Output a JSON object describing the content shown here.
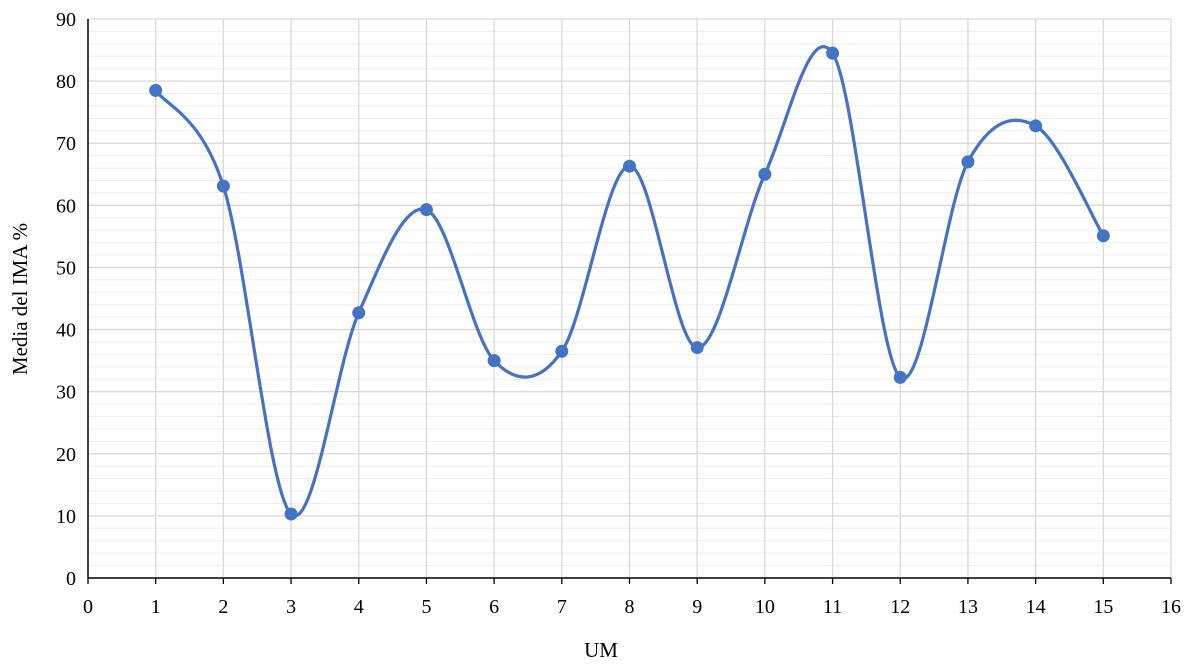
{
  "chart_data": {
    "type": "line",
    "smooth": true,
    "xlabel": "UM",
    "ylabel": "Media del IMA %",
    "xlim": [
      0,
      16
    ],
    "ylim": [
      0,
      90
    ],
    "x_ticks": [
      "0",
      "1",
      "2",
      "3",
      "4",
      "5",
      "6",
      "7",
      "8",
      "9",
      "10",
      "11",
      "12",
      "13",
      "14",
      "15",
      "16"
    ],
    "y_ticks": [
      "0",
      "10",
      "20",
      "30",
      "40",
      "50",
      "60",
      "70",
      "80",
      "90"
    ],
    "grid": {
      "major": true,
      "minor_y": true,
      "minor_y_step": 2
    },
    "series": [
      {
        "color": "#4472C4",
        "x": [
          1,
          2,
          3,
          4,
          5,
          6,
          7,
          8,
          9,
          10,
          11,
          12,
          13,
          14,
          15
        ],
        "y": [
          78.5,
          63.1,
          10.3,
          42.7,
          59.3,
          35.0,
          36.5,
          66.3,
          37.1,
          65.0,
          84.5,
          32.3,
          67.0,
          72.8,
          55.1
        ]
      }
    ]
  }
}
